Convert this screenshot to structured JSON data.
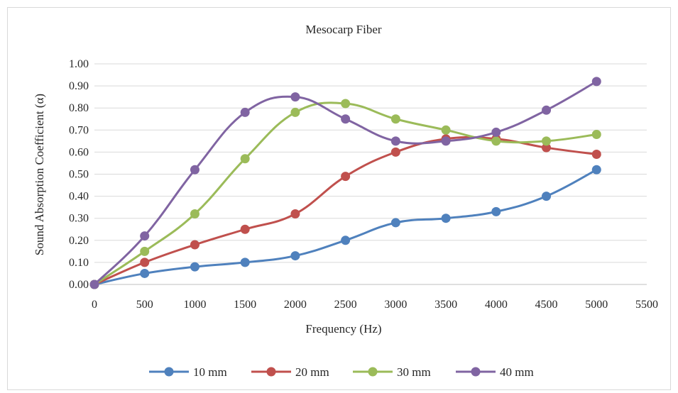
{
  "chart_data": {
    "type": "line",
    "title": "Mesocarp Fiber",
    "xlabel": "Frequency (Hz)",
    "ylabel": "Sound Absorption Coefficient (α)",
    "xlim": [
      0,
      5500
    ],
    "ylim": [
      0,
      1.0
    ],
    "x_ticks": [
      "0",
      "500",
      "1000",
      "1500",
      "2000",
      "2500",
      "3000",
      "3500",
      "4000",
      "4500",
      "5000",
      "5500"
    ],
    "y_ticks": [
      "0.00",
      "0.10",
      "0.20",
      "0.30",
      "0.40",
      "0.50",
      "0.60",
      "0.70",
      "0.80",
      "0.90",
      "1.00"
    ],
    "grid": "horizontal",
    "legend_position": "bottom",
    "x": [
      0,
      500,
      1000,
      1500,
      2000,
      2500,
      3000,
      3500,
      4000,
      4500,
      5000
    ],
    "series": [
      {
        "name": "10 mm",
        "color": "#4f81bd",
        "values": [
          0.0,
          0.05,
          0.08,
          0.1,
          0.13,
          0.2,
          0.28,
          0.3,
          0.33,
          0.4,
          0.52
        ]
      },
      {
        "name": "20 mm",
        "color": "#c0504d",
        "values": [
          0.0,
          0.1,
          0.18,
          0.25,
          0.32,
          0.49,
          0.6,
          0.66,
          0.66,
          0.62,
          0.59
        ]
      },
      {
        "name": "30 mm",
        "color": "#9bbb59",
        "values": [
          0.0,
          0.15,
          0.32,
          0.57,
          0.78,
          0.82,
          0.75,
          0.7,
          0.65,
          0.65,
          0.68
        ]
      },
      {
        "name": "40 mm",
        "color": "#8064a2",
        "values": [
          0.0,
          0.22,
          0.52,
          0.78,
          0.85,
          0.75,
          0.65,
          0.65,
          0.69,
          0.79,
          0.92
        ]
      }
    ]
  }
}
